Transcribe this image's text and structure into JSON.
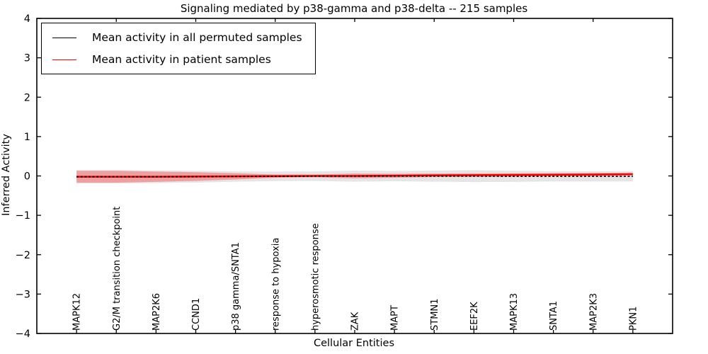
{
  "figure": {
    "title": "Signaling mediated by p38-gamma and p38-delta -- 215 samples",
    "xlabel": "Cellular Entities",
    "ylabel": "Inferred Activity"
  },
  "legend": {
    "items": [
      {
        "label": "Mean activity in all permuted samples",
        "color": "#000000"
      },
      {
        "label": "Mean activity in patient samples",
        "color": "#ff0000"
      }
    ]
  },
  "chart_data": {
    "type": "line",
    "title": "Signaling mediated by p38-gamma and p38-delta -- 215 samples",
    "xlabel": "Cellular Entities",
    "ylabel": "Inferred Activity",
    "ylim": [
      -4,
      4
    ],
    "yticks": [
      4,
      3,
      2,
      1,
      0,
      -1,
      -2,
      -3,
      -4
    ],
    "grid": false,
    "legend_position": "upper left",
    "categories": [
      "MAPK12",
      "G2/M transition checkpoint",
      "MAP2K6",
      "CCND1",
      "p38 gamma/SNTA1",
      "response to hypoxia",
      "hyperosmotic response",
      "ZAK",
      "MAPT",
      "STMN1",
      "EEF2K",
      "MAPK13",
      "SNTA1",
      "MAP2K3",
      "PKN1"
    ],
    "series": [
      {
        "name": "Mean activity in all permuted samples",
        "color": "#000000",
        "line_style": "dashed",
        "values": [
          -0.02,
          -0.02,
          -0.02,
          -0.02,
          -0.015,
          -0.01,
          -0.005,
          -0.005,
          -0.005,
          -0.005,
          -0.005,
          -0.01,
          -0.01,
          -0.01,
          -0.01
        ],
        "band_halfwidth": [
          0.17,
          0.17,
          0.16,
          0.15,
          0.13,
          0.12,
          0.12,
          0.14,
          0.13,
          0.14,
          0.15,
          0.14,
          0.13,
          0.13,
          0.13
        ],
        "band_color": "rgba(0,0,0,0.10)"
      },
      {
        "name": "Mean activity in patient samples",
        "color": "#ff0000",
        "line_style": "solid",
        "values": [
          -0.02,
          -0.02,
          -0.02,
          -0.015,
          -0.01,
          -0.005,
          0.0,
          0.0,
          0.005,
          0.015,
          0.02,
          0.025,
          0.03,
          0.035,
          0.045
        ],
        "band_halfwidth": [
          0.15,
          0.15,
          0.13,
          0.11,
          0.08,
          0.04,
          0.035,
          0.06,
          0.05,
          0.045,
          0.045,
          0.04,
          0.035,
          0.035,
          0.03
        ],
        "band_color": "rgba(255,0,0,0.30)"
      }
    ]
  }
}
